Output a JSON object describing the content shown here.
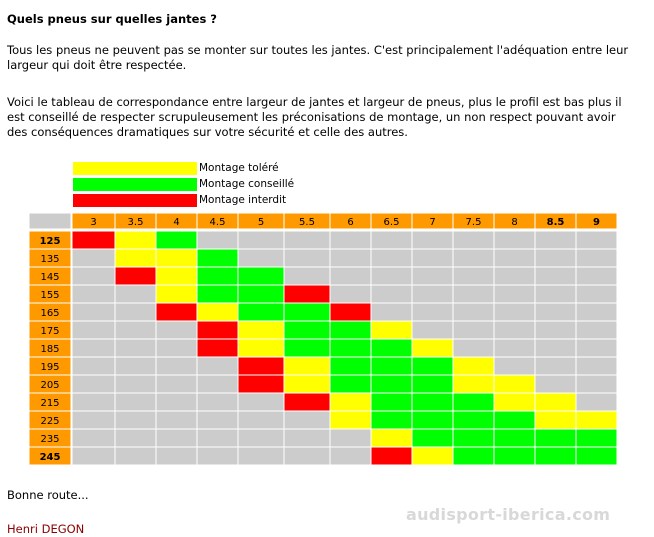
{
  "title": "Quels pneus sur quelles jantes ?",
  "paragraph1": "Tous les pneus ne peuvent pas se monter sur toutes les jantes. C'est principalement l'adéquation entre leur largeur qui doit être respectée.",
  "paragraph2": "Voici le tableau de correspondance entre largeur de jantes et largeur de pneus, plus le profil est bas plus il est conseillé de respecter scrupuleusement les préconisations de montage, un non respect pouvant avoir des conséquences dramatiques sur votre sécurité et celle des autres.",
  "legend": [
    {
      "label": "Montage toléré",
      "color": "#ffff00"
    },
    {
      "label": "Montage conseillé",
      "color": "#00ff00"
    },
    {
      "label": "Montage interdit",
      "color": "#ff0000"
    }
  ],
  "colors": {
    "header_bg": "#ff9900",
    "empty_cell": "#cccccc",
    "tolerated": "#ffff00",
    "recommended": "#00ff00",
    "forbidden": "#ff0000"
  },
  "chart_data": {
    "type": "table",
    "columns": [
      "3",
      "3.5",
      "4",
      "4.5",
      "5",
      "5.5",
      "6",
      "6.5",
      "7",
      "7.5",
      "8",
      "8.5",
      "9"
    ],
    "rows": [
      {
        "label": "125",
        "cells": [
          "R",
          "Y",
          "G",
          "",
          "",
          "",
          "",
          "",
          "",
          "",
          "",
          "",
          ""
        ]
      },
      {
        "label": "135",
        "cells": [
          "",
          "Y",
          "Y",
          "G",
          "",
          "",
          "",
          "",
          "",
          "",
          "",
          "",
          ""
        ]
      },
      {
        "label": "145",
        "cells": [
          "",
          "R",
          "Y",
          "G",
          "G",
          "",
          "",
          "",
          "",
          "",
          "",
          "",
          ""
        ]
      },
      {
        "label": "155",
        "cells": [
          "",
          "",
          "Y",
          "G",
          "G",
          "R",
          "",
          "",
          "",
          "",
          "",
          "",
          ""
        ]
      },
      {
        "label": "165",
        "cells": [
          "",
          "",
          "R",
          "Y",
          "G",
          "G",
          "R",
          "",
          "",
          "",
          "",
          "",
          ""
        ]
      },
      {
        "label": "175",
        "cells": [
          "",
          "",
          "",
          "R",
          "Y",
          "G",
          "G",
          "Y",
          "",
          "",
          "",
          "",
          ""
        ]
      },
      {
        "label": "185",
        "cells": [
          "",
          "",
          "",
          "R",
          "Y",
          "G",
          "G",
          "G",
          "Y",
          "",
          "",
          "",
          ""
        ]
      },
      {
        "label": "195",
        "cells": [
          "",
          "",
          "",
          "",
          "R",
          "Y",
          "G",
          "G",
          "G",
          "Y",
          "",
          "",
          ""
        ]
      },
      {
        "label": "205",
        "cells": [
          "",
          "",
          "",
          "",
          "R",
          "Y",
          "G",
          "G",
          "G",
          "Y",
          "Y",
          "",
          ""
        ]
      },
      {
        "label": "215",
        "cells": [
          "",
          "",
          "",
          "",
          "",
          "R",
          "Y",
          "G",
          "G",
          "G",
          "Y",
          "Y",
          ""
        ]
      },
      {
        "label": "225",
        "cells": [
          "",
          "",
          "",
          "",
          "",
          "",
          "Y",
          "G",
          "G",
          "G",
          "G",
          "Y",
          "Y"
        ]
      },
      {
        "label": "235",
        "cells": [
          "",
          "",
          "",
          "",
          "",
          "",
          "",
          "Y",
          "G",
          "G",
          "G",
          "G",
          "G"
        ]
      },
      {
        "label": "245",
        "cells": [
          "",
          "",
          "",
          "",
          "",
          "",
          "",
          "R",
          "Y",
          "G",
          "G",
          "G",
          "G"
        ]
      }
    ],
    "bold_columns": [
      "8.5",
      "9"
    ],
    "bold_rows": [
      "125",
      "245"
    ]
  },
  "closing": "Bonne route...",
  "author": "Henri DEGON",
  "watermark": "audisport-iberica.com"
}
